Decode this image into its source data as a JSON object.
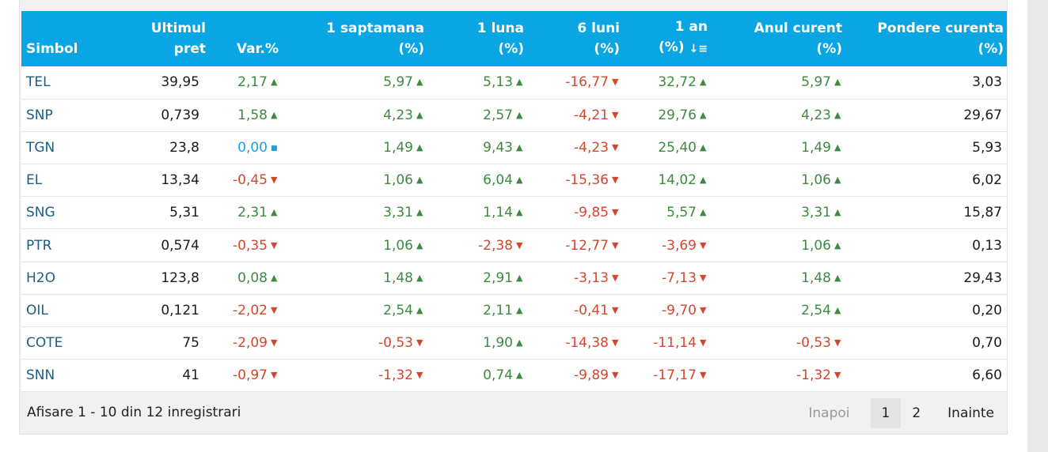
{
  "table": {
    "headers": [
      {
        "l1": "",
        "l2": "Simbol"
      },
      {
        "l1": "Ultimul",
        "l2": "pret"
      },
      {
        "l1": "",
        "l2": "Var.%"
      },
      {
        "l1": "1 saptamana",
        "l2": "(%)"
      },
      {
        "l1": "1 luna",
        "l2": "(%)"
      },
      {
        "l1": "6 luni",
        "l2": "(%)"
      },
      {
        "l1": "1 an",
        "l2": "(%)"
      },
      {
        "l1": "Anul curent",
        "l2": "(%)"
      },
      {
        "l1": "Pondere curenta",
        "l2": "(%)"
      }
    ],
    "sort_icon": "sort-descending-icon",
    "rows": [
      {
        "symbol": "TEL",
        "price": "39,95",
        "var": "2,17",
        "var_dir": "up",
        "w1": "5,97",
        "w1_dir": "up",
        "m1": "5,13",
        "m1_dir": "up",
        "m6": "-16,77",
        "m6_dir": "down",
        "y1": "32,72",
        "y1_dir": "up",
        "ytd": "5,97",
        "ytd_dir": "up",
        "weight": "3,03"
      },
      {
        "symbol": "SNP",
        "price": "0,739",
        "var": "1,58",
        "var_dir": "up",
        "w1": "4,23",
        "w1_dir": "up",
        "m1": "2,57",
        "m1_dir": "up",
        "m6": "-4,21",
        "m6_dir": "down",
        "y1": "29,76",
        "y1_dir": "up",
        "ytd": "4,23",
        "ytd_dir": "up",
        "weight": "29,67"
      },
      {
        "symbol": "TGN",
        "price": "23,8",
        "var": "0,00",
        "var_dir": "flat",
        "w1": "1,49",
        "w1_dir": "up",
        "m1": "9,43",
        "m1_dir": "up",
        "m6": "-4,23",
        "m6_dir": "down",
        "y1": "25,40",
        "y1_dir": "up",
        "ytd": "1,49",
        "ytd_dir": "up",
        "weight": "5,93"
      },
      {
        "symbol": "EL",
        "price": "13,34",
        "var": "-0,45",
        "var_dir": "down",
        "w1": "1,06",
        "w1_dir": "up",
        "m1": "6,04",
        "m1_dir": "up",
        "m6": "-15,36",
        "m6_dir": "down",
        "y1": "14,02",
        "y1_dir": "up",
        "ytd": "1,06",
        "ytd_dir": "up",
        "weight": "6,02"
      },
      {
        "symbol": "SNG",
        "price": "5,31",
        "var": "2,31",
        "var_dir": "up",
        "w1": "3,31",
        "w1_dir": "up",
        "m1": "1,14",
        "m1_dir": "up",
        "m6": "-9,85",
        "m6_dir": "down",
        "y1": "5,57",
        "y1_dir": "up",
        "ytd": "3,31",
        "ytd_dir": "up",
        "weight": "15,87"
      },
      {
        "symbol": "PTR",
        "price": "0,574",
        "var": "-0,35",
        "var_dir": "down",
        "w1": "1,06",
        "w1_dir": "up",
        "m1": "-2,38",
        "m1_dir": "down",
        "m6": "-12,77",
        "m6_dir": "down",
        "y1": "-3,69",
        "y1_dir": "down",
        "ytd": "1,06",
        "ytd_dir": "up",
        "weight": "0,13"
      },
      {
        "symbol": "H2O",
        "price": "123,8",
        "var": "0,08",
        "var_dir": "up",
        "w1": "1,48",
        "w1_dir": "up",
        "m1": "2,91",
        "m1_dir": "up",
        "m6": "-3,13",
        "m6_dir": "down",
        "y1": "-7,13",
        "y1_dir": "down",
        "ytd": "1,48",
        "ytd_dir": "up",
        "weight": "29,43"
      },
      {
        "symbol": "OIL",
        "price": "0,121",
        "var": "-2,02",
        "var_dir": "down",
        "w1": "2,54",
        "w1_dir": "up",
        "m1": "2,11",
        "m1_dir": "up",
        "m6": "-0,41",
        "m6_dir": "down",
        "y1": "-9,70",
        "y1_dir": "down",
        "ytd": "2,54",
        "ytd_dir": "up",
        "weight": "0,20"
      },
      {
        "symbol": "COTE",
        "price": "75",
        "var": "-2,09",
        "var_dir": "down",
        "w1": "-0,53",
        "w1_dir": "down",
        "m1": "1,90",
        "m1_dir": "up",
        "m6": "-14,38",
        "m6_dir": "down",
        "y1": "-11,14",
        "y1_dir": "down",
        "ytd": "-0,53",
        "ytd_dir": "down",
        "weight": "0,70"
      },
      {
        "symbol": "SNN",
        "price": "41",
        "var": "-0,97",
        "var_dir": "down",
        "w1": "-1,32",
        "w1_dir": "down",
        "m1": "0,74",
        "m1_dir": "up",
        "m6": "-9,89",
        "m6_dir": "down",
        "y1": "-17,17",
        "y1_dir": "down",
        "ytd": "-1,32",
        "ytd_dir": "down",
        "weight": "6,60"
      }
    ]
  },
  "footer": {
    "info": "Afisare 1 - 10 din 12 inregistrari",
    "prev": "Inapoi",
    "pages": [
      "1",
      "2"
    ],
    "current_page": "1",
    "next": "Inainte"
  },
  "colors": {
    "header_bg": "#0aa6e4",
    "up": "#3d8a40",
    "down": "#d2472f",
    "flat": "#1aa2e0",
    "symbol": "#1d5c86"
  }
}
